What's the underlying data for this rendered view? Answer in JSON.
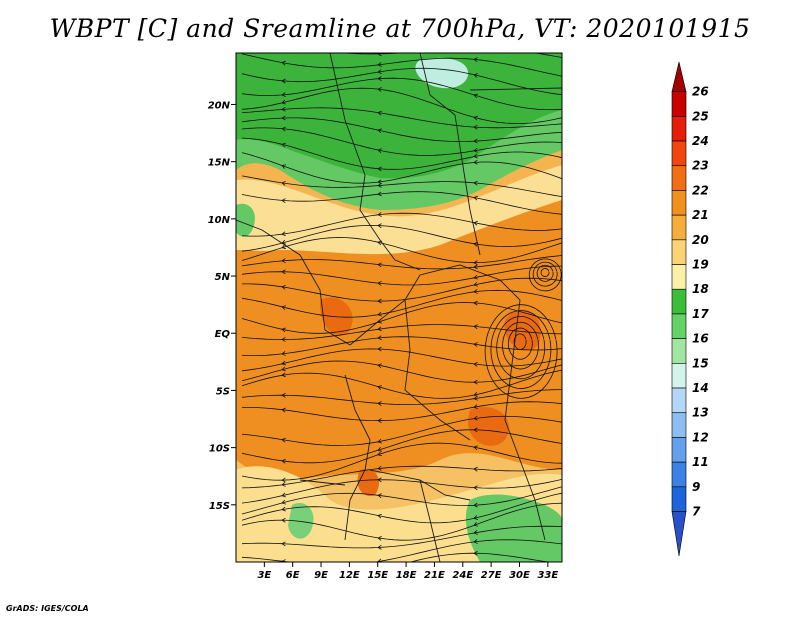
{
  "title": "WBPT [C] and Sreamline at 700hPa, VT: 2020101915",
  "footer": "GrADS: IGES/COLA",
  "map": {
    "lat_labels": [
      "20N",
      "15N",
      "10N",
      "5N",
      "EQ",
      "5S",
      "10S",
      "15S"
    ],
    "lat_values": [
      20,
      15,
      10,
      5,
      0,
      -5,
      -10,
      -15
    ],
    "lon_labels": [
      "3E",
      "6E",
      "9E",
      "12E",
      "15E",
      "18E",
      "21E",
      "24E",
      "27E",
      "30E",
      "33E"
    ],
    "lon_values": [
      3,
      6,
      9,
      12,
      15,
      18,
      21,
      24,
      27,
      30,
      33
    ],
    "lat_range": [
      -20,
      24.5
    ],
    "lon_range": [
      0,
      34.5
    ]
  },
  "colorbar": {
    "labels": [
      "26",
      "25",
      "24",
      "23",
      "22",
      "21",
      "20",
      "19",
      "18",
      "17",
      "16",
      "15",
      "14",
      "13",
      "12",
      "11",
      "9",
      "7"
    ],
    "colors": [
      "#a50000",
      "#c80000",
      "#e61e0a",
      "#f0460f",
      "#f06e14",
      "#f0901e",
      "#f5ad3c",
      "#fad278",
      "#faf0a8",
      "#3cbe3c",
      "#64d264",
      "#a0e6a0",
      "#d2f5eb",
      "#b4d7f5",
      "#8cbef0",
      "#64a0eb",
      "#3c82e6",
      "#1e64dc",
      "#2850c8"
    ]
  }
}
